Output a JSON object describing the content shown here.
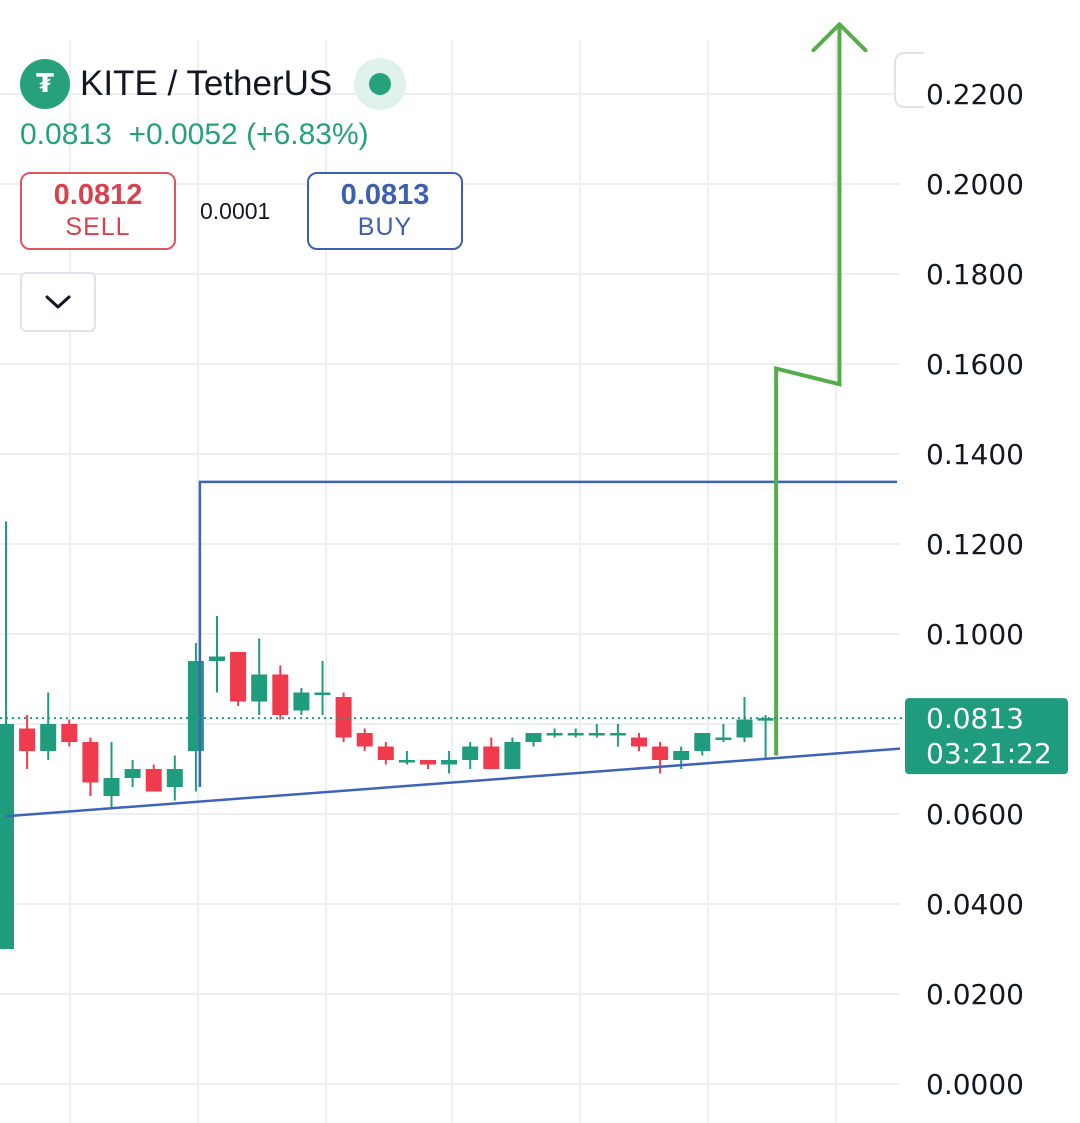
{
  "header": {
    "logo_glyph": "₮",
    "pair": "KITE / TetherUS",
    "status_icon": "market-open-dot-icon",
    "last": "0.0813",
    "change": "+0.0052",
    "change_pct": "(+6.83%)",
    "change_color": "#26a17b"
  },
  "trade": {
    "sell_price": "0.0812",
    "sell_label": "SELL",
    "spread": "0.0001",
    "buy_price": "0.0813",
    "buy_label": "BUY"
  },
  "controls": {
    "dropdown_icon": "chevron-down-icon"
  },
  "colors": {
    "up": "#1f9b7e",
    "down": "#ef3b4c",
    "trendline": "#3e63b8",
    "arrow": "#55ad4a",
    "grid": "#eeeff2",
    "label_bg": "#1f9b7e"
  },
  "chart_data": {
    "type": "candlestick",
    "y_axis": {
      "min": 0,
      "max": 0.22,
      "ticks": [
        "0.2200",
        "0.2000",
        "0.1800",
        "0.1600",
        "0.1400",
        "0.1200",
        "0.1000",
        "0.0600",
        "0.0400",
        "0.0200",
        "0.0000"
      ],
      "position": "right"
    },
    "grid": true,
    "candles": [
      {
        "o": 0.03,
        "h": 0.125,
        "l": 0.03,
        "c": 0.08
      },
      {
        "o": 0.079,
        "h": 0.082,
        "l": 0.07,
        "c": 0.074
      },
      {
        "o": 0.074,
        "h": 0.087,
        "l": 0.072,
        "c": 0.08
      },
      {
        "o": 0.08,
        "h": 0.081,
        "l": 0.075,
        "c": 0.076
      },
      {
        "o": 0.076,
        "h": 0.077,
        "l": 0.064,
        "c": 0.067
      },
      {
        "o": 0.064,
        "h": 0.076,
        "l": 0.061,
        "c": 0.068
      },
      {
        "o": 0.068,
        "h": 0.072,
        "l": 0.066,
        "c": 0.07
      },
      {
        "o": 0.07,
        "h": 0.071,
        "l": 0.065,
        "c": 0.065
      },
      {
        "o": 0.066,
        "h": 0.073,
        "l": 0.063,
        "c": 0.07
      },
      {
        "o": 0.074,
        "h": 0.098,
        "l": 0.065,
        "c": 0.094
      },
      {
        "o": 0.094,
        "h": 0.104,
        "l": 0.087,
        "c": 0.095
      },
      {
        "o": 0.096,
        "h": 0.096,
        "l": 0.084,
        "c": 0.085
      },
      {
        "o": 0.085,
        "h": 0.099,
        "l": 0.082,
        "c": 0.091
      },
      {
        "o": 0.091,
        "h": 0.093,
        "l": 0.081,
        "c": 0.082
      },
      {
        "o": 0.083,
        "h": 0.088,
        "l": 0.082,
        "c": 0.087
      },
      {
        "o": 0.087,
        "h": 0.094,
        "l": 0.082,
        "c": 0.087
      },
      {
        "o": 0.086,
        "h": 0.087,
        "l": 0.076,
        "c": 0.077
      },
      {
        "o": 0.078,
        "h": 0.079,
        "l": 0.074,
        "c": 0.075
      },
      {
        "o": 0.075,
        "h": 0.076,
        "l": 0.071,
        "c": 0.072
      },
      {
        "o": 0.072,
        "h": 0.074,
        "l": 0.071,
        "c": 0.072
      },
      {
        "o": 0.072,
        "h": 0.072,
        "l": 0.07,
        "c": 0.071
      },
      {
        "o": 0.071,
        "h": 0.074,
        "l": 0.069,
        "c": 0.072
      },
      {
        "o": 0.072,
        "h": 0.076,
        "l": 0.07,
        "c": 0.075
      },
      {
        "o": 0.075,
        "h": 0.077,
        "l": 0.07,
        "c": 0.07
      },
      {
        "o": 0.07,
        "h": 0.077,
        "l": 0.07,
        "c": 0.076
      },
      {
        "o": 0.076,
        "h": 0.078,
        "l": 0.075,
        "c": 0.078
      },
      {
        "o": 0.078,
        "h": 0.079,
        "l": 0.077,
        "c": 0.078
      },
      {
        "o": 0.078,
        "h": 0.079,
        "l": 0.077,
        "c": 0.078
      },
      {
        "o": 0.078,
        "h": 0.08,
        "l": 0.077,
        "c": 0.078
      },
      {
        "o": 0.078,
        "h": 0.08,
        "l": 0.075,
        "c": 0.078
      },
      {
        "o": 0.077,
        "h": 0.078,
        "l": 0.074,
        "c": 0.075
      },
      {
        "o": 0.075,
        "h": 0.076,
        "l": 0.069,
        "c": 0.072
      },
      {
        "o": 0.072,
        "h": 0.075,
        "l": 0.07,
        "c": 0.074
      },
      {
        "o": 0.074,
        "h": 0.078,
        "l": 0.073,
        "c": 0.078
      },
      {
        "o": 0.077,
        "h": 0.08,
        "l": 0.076,
        "c": 0.077
      },
      {
        "o": 0.077,
        "h": 0.086,
        "l": 0.076,
        "c": 0.081
      },
      {
        "o": 0.081,
        "h": 0.082,
        "l": 0.072,
        "c": 0.0813
      }
    ],
    "current_price": {
      "value": 0.0813,
      "label": "0.0813",
      "countdown": "03:21:22"
    },
    "drawings": {
      "support_trendline": {
        "start": {
          "candle": 0,
          "price": 0.0595
        },
        "end": {
          "candle": 37,
          "price": 0.0723
        }
      },
      "target_step": {
        "price": 0.1338
      },
      "arrow_path": [
        {
          "candle": 36.5,
          "price": 0.073
        },
        {
          "candle": 36.5,
          "price": 0.159
        },
        {
          "candle": 39.5,
          "price": 0.1555
        },
        {
          "candle": 39.5,
          "price": 0.2355
        }
      ]
    }
  }
}
